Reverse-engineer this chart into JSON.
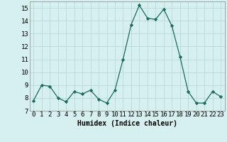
{
  "x": [
    0,
    1,
    2,
    3,
    4,
    5,
    6,
    7,
    8,
    9,
    10,
    11,
    12,
    13,
    14,
    15,
    16,
    17,
    18,
    19,
    20,
    21,
    22,
    23
  ],
  "y": [
    7.8,
    9.0,
    8.9,
    8.0,
    7.7,
    8.5,
    8.3,
    8.6,
    7.9,
    7.6,
    8.6,
    11.0,
    13.7,
    15.2,
    14.2,
    14.1,
    14.9,
    13.6,
    11.2,
    8.5,
    7.6,
    7.6,
    8.5,
    8.1
  ],
  "line_color": "#1a6b5a",
  "marker": "D",
  "marker_size": 2.2,
  "bg_color": "#d6f0ef",
  "grid_color": "#b8d8d5",
  "xlabel": "Humidex (Indice chaleur)",
  "ylim": [
    7,
    15.5
  ],
  "yticks": [
    7,
    8,
    9,
    10,
    11,
    12,
    13,
    14,
    15
  ],
  "xtick_labels": [
    "0",
    "1",
    "2",
    "3",
    "4",
    "5",
    "6",
    "7",
    "8",
    "9",
    "10",
    "11",
    "12",
    "13",
    "14",
    "15",
    "16",
    "17",
    "18",
    "19",
    "20",
    "21",
    "22",
    "23"
  ],
  "xlabel_fontsize": 7,
  "tick_fontsize": 6.5
}
